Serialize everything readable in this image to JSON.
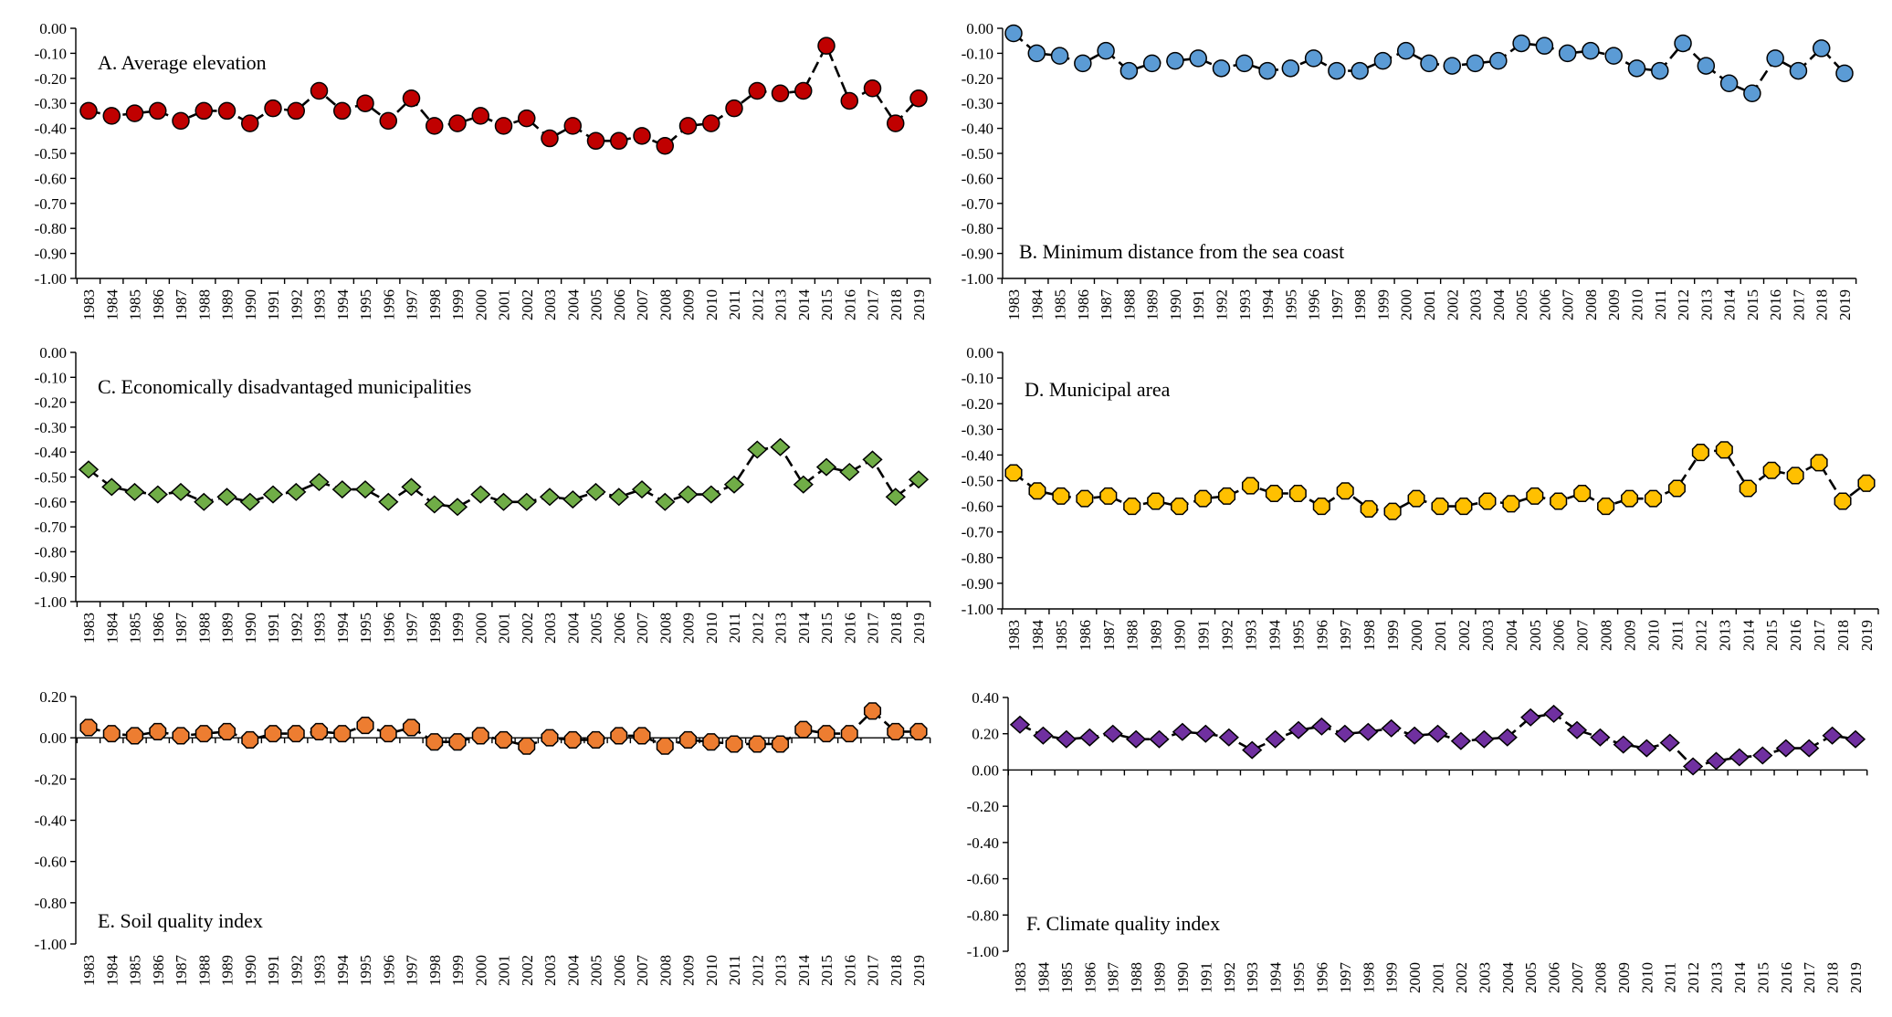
{
  "chart_data": [
    {
      "type": "line",
      "title": "A. Average elevation",
      "ylim": [
        -1.0,
        0.0
      ],
      "yticks": [
        "0.00",
        "-0.10",
        "-0.20",
        "-0.30",
        "-0.40",
        "-0.50",
        "-0.60",
        "-0.70",
        "-0.80",
        "-0.90",
        "-1.00"
      ],
      "ytick_values": [
        0.0,
        -0.1,
        -0.2,
        -0.3,
        -0.4,
        -0.5,
        -0.6,
        -0.7,
        -0.8,
        -0.9,
        -1.0
      ],
      "categories": [
        "1983",
        "1984",
        "1985",
        "1986",
        "1987",
        "1988",
        "1989",
        "1990",
        "1991",
        "1992",
        "1993",
        "1994",
        "1995",
        "1996",
        "1997",
        "1998",
        "1999",
        "2000",
        "2001",
        "2002",
        "2003",
        "2004",
        "2005",
        "2006",
        "2007",
        "2008",
        "2009",
        "2010",
        "2011",
        "2012",
        "2013",
        "2014",
        "2015",
        "2016",
        "2017",
        "2018",
        "2019"
      ],
      "values": [
        -0.33,
        -0.35,
        -0.34,
        -0.33,
        -0.37,
        -0.33,
        -0.33,
        -0.38,
        -0.32,
        -0.33,
        -0.25,
        -0.33,
        -0.3,
        -0.37,
        -0.28,
        -0.39,
        -0.38,
        -0.35,
        -0.39,
        -0.36,
        -0.44,
        -0.39,
        -0.45,
        -0.45,
        -0.43,
        -0.47,
        -0.39,
        -0.38,
        -0.32,
        -0.25,
        -0.26,
        -0.25,
        -0.07,
        -0.29,
        -0.24,
        -0.38,
        -0.28
      ],
      "marker": "circle",
      "color": "#c00000"
    },
    {
      "type": "line",
      "title": "B. Minimum distance from the sea coast",
      "ylim": [
        -1.0,
        0.0
      ],
      "yticks": [
        "0.00",
        "-0.10",
        "-0.20",
        "-0.30",
        "-0.40",
        "-0.50",
        "-0.60",
        "-0.70",
        "-0.80",
        "-0.90",
        "-1.00"
      ],
      "ytick_values": [
        0.0,
        -0.1,
        -0.2,
        -0.3,
        -0.4,
        -0.5,
        -0.6,
        -0.7,
        -0.8,
        -0.9,
        -1.0
      ],
      "categories": [
        "1983",
        "1984",
        "1985",
        "1986",
        "1987",
        "1988",
        "1989",
        "1990",
        "1991",
        "1992",
        "1993",
        "1994",
        "1995",
        "1996",
        "1997",
        "1998",
        "1999",
        "2000",
        "2001",
        "2002",
        "2003",
        "2004",
        "2005",
        "2006",
        "2007",
        "2008",
        "2009",
        "2010",
        "2011",
        "2012",
        "2013",
        "2014",
        "2015",
        "2016",
        "2017",
        "2018",
        "2019"
      ],
      "values": [
        -0.02,
        -0.1,
        -0.11,
        -0.14,
        -0.09,
        -0.17,
        -0.14,
        -0.13,
        -0.12,
        -0.16,
        -0.14,
        -0.17,
        -0.16,
        -0.12,
        -0.17,
        -0.17,
        -0.13,
        -0.09,
        -0.14,
        -0.15,
        -0.14,
        -0.13,
        -0.06,
        -0.07,
        -0.1,
        -0.09,
        -0.11,
        -0.16,
        -0.17,
        -0.06,
        -0.15,
        -0.22,
        -0.26,
        -0.12,
        -0.17,
        -0.08,
        -0.18
      ],
      "marker": "circle",
      "color": "#5b9bd5"
    },
    {
      "type": "line",
      "title": "C. Economically disadvantaged municipalities",
      "ylim": [
        -1.0,
        0.0
      ],
      "yticks": [
        "0.00",
        "-0.10",
        "-0.20",
        "-0.30",
        "-0.40",
        "-0.50",
        "-0.60",
        "-0.70",
        "-0.80",
        "-0.90",
        "-1.00"
      ],
      "ytick_values": [
        0.0,
        -0.1,
        -0.2,
        -0.3,
        -0.4,
        -0.5,
        -0.6,
        -0.7,
        -0.8,
        -0.9,
        -1.0
      ],
      "categories": [
        "1983",
        "1984",
        "1985",
        "1986",
        "1987",
        "1988",
        "1989",
        "1990",
        "1991",
        "1992",
        "1993",
        "1994",
        "1995",
        "1996",
        "1997",
        "1998",
        "1999",
        "2000",
        "2001",
        "2002",
        "2003",
        "2004",
        "2005",
        "2006",
        "2007",
        "2008",
        "2009",
        "2010",
        "2011",
        "2012",
        "2013",
        "2014",
        "2015",
        "2016",
        "2017",
        "2018",
        "2019"
      ],
      "values": [
        -0.47,
        -0.54,
        -0.56,
        -0.57,
        -0.56,
        -0.6,
        -0.58,
        -0.6,
        -0.57,
        -0.56,
        -0.52,
        -0.55,
        -0.55,
        -0.6,
        -0.54,
        -0.61,
        -0.62,
        -0.57,
        -0.6,
        -0.6,
        -0.58,
        -0.59,
        -0.56,
        -0.58,
        -0.55,
        -0.6,
        -0.57,
        -0.57,
        -0.53,
        -0.39,
        -0.38,
        -0.53,
        -0.46,
        -0.48,
        -0.43,
        -0.58,
        -0.51
      ],
      "marker": "diamond",
      "color": "#70ad47"
    },
    {
      "type": "line",
      "title": "D. Municipal area",
      "ylim": [
        -1.0,
        0.0
      ],
      "yticks": [
        "0.00",
        "-0.10",
        "-0.20",
        "-0.30",
        "-0.40",
        "-0.50",
        "-0.60",
        "-0.70",
        "-0.80",
        "-0.90",
        "-1.00"
      ],
      "ytick_values": [
        0.0,
        -0.1,
        -0.2,
        -0.3,
        -0.4,
        -0.5,
        -0.6,
        -0.7,
        -0.8,
        -0.9,
        -1.0
      ],
      "categories": [
        "1983",
        "1984",
        "1985",
        "1986",
        "1987",
        "1988",
        "1989",
        "1990",
        "1991",
        "1992",
        "1993",
        "1994",
        "1995",
        "1996",
        "1997",
        "1998",
        "1999",
        "2000",
        "2001",
        "2002",
        "2003",
        "2004",
        "2005",
        "2006",
        "2007",
        "2008",
        "2009",
        "2010",
        "2011",
        "2012",
        "2013",
        "2014",
        "2015",
        "2016",
        "2017",
        "2018",
        "2019"
      ],
      "values": [
        -0.47,
        -0.54,
        -0.56,
        -0.57,
        -0.56,
        -0.6,
        -0.58,
        -0.6,
        -0.57,
        -0.56,
        -0.52,
        -0.55,
        -0.55,
        -0.6,
        -0.54,
        -0.61,
        -0.62,
        -0.57,
        -0.6,
        -0.6,
        -0.58,
        -0.59,
        -0.56,
        -0.58,
        -0.55,
        -0.6,
        -0.57,
        -0.57,
        -0.53,
        -0.39,
        -0.38,
        -0.53,
        -0.46,
        -0.48,
        -0.43,
        -0.58,
        -0.51
      ],
      "marker": "octagon",
      "color": "#ffc000"
    },
    {
      "type": "line",
      "title": "E. Soil quality index",
      "ylim": [
        -1.0,
        0.2
      ],
      "yticks": [
        "0.20",
        "0.00",
        "-0.20",
        "-0.40",
        "-0.60",
        "-0.80",
        "-1.00"
      ],
      "ytick_values": [
        0.2,
        0.0,
        -0.2,
        -0.4,
        -0.6,
        -0.8,
        -1.0
      ],
      "categories": [
        "1983",
        "1984",
        "1985",
        "1986",
        "1987",
        "1988",
        "1989",
        "1990",
        "1991",
        "1992",
        "1993",
        "1994",
        "1995",
        "1996",
        "1997",
        "1998",
        "1999",
        "2000",
        "2001",
        "2002",
        "2003",
        "2004",
        "2005",
        "2006",
        "2007",
        "2008",
        "2009",
        "2010",
        "2011",
        "2012",
        "2013",
        "2014",
        "2015",
        "2016",
        "2017",
        "2018",
        "2019"
      ],
      "values": [
        0.05,
        0.02,
        0.01,
        0.03,
        0.01,
        0.02,
        0.03,
        -0.01,
        0.02,
        0.02,
        0.03,
        0.02,
        0.06,
        0.02,
        0.05,
        -0.02,
        -0.02,
        0.01,
        -0.01,
        -0.04,
        0.0,
        -0.01,
        -0.01,
        0.01,
        0.01,
        -0.04,
        -0.01,
        -0.02,
        -0.03,
        -0.03,
        -0.03,
        0.04,
        0.02,
        0.02,
        0.13,
        0.03,
        0.03
      ],
      "marker": "octagon",
      "color": "#ed7d31"
    },
    {
      "type": "line",
      "title": "F. Climate quality index",
      "ylim": [
        -1.0,
        0.4
      ],
      "yticks": [
        "0.40",
        "0.20",
        "0.00",
        "-0.20",
        "-0.40",
        "-0.60",
        "-0.80",
        "-1.00"
      ],
      "ytick_values": [
        0.4,
        0.2,
        0.0,
        -0.2,
        -0.4,
        -0.6,
        -0.8,
        -1.0
      ],
      "categories": [
        "1983",
        "1984",
        "1985",
        "1986",
        "1987",
        "1988",
        "1989",
        "1990",
        "1991",
        "1992",
        "1993",
        "1994",
        "1995",
        "1996",
        "1997",
        "1998",
        "1999",
        "2000",
        "2001",
        "2002",
        "2003",
        "2004",
        "2005",
        "2006",
        "2007",
        "2008",
        "2009",
        "2010",
        "2011",
        "2012",
        "2013",
        "2014",
        "2015",
        "2016",
        "2017",
        "2018",
        "2019"
      ],
      "values": [
        0.25,
        0.19,
        0.17,
        0.18,
        0.2,
        0.17,
        0.17,
        0.21,
        0.2,
        0.18,
        0.11,
        0.17,
        0.22,
        0.24,
        0.2,
        0.21,
        0.23,
        0.19,
        0.2,
        0.16,
        0.17,
        0.18,
        0.29,
        0.31,
        0.22,
        0.18,
        0.14,
        0.12,
        0.15,
        0.02,
        0.05,
        0.07,
        0.08,
        0.12,
        0.12,
        0.19,
        0.17
      ],
      "marker": "diamond",
      "color": "#7030a0"
    }
  ]
}
